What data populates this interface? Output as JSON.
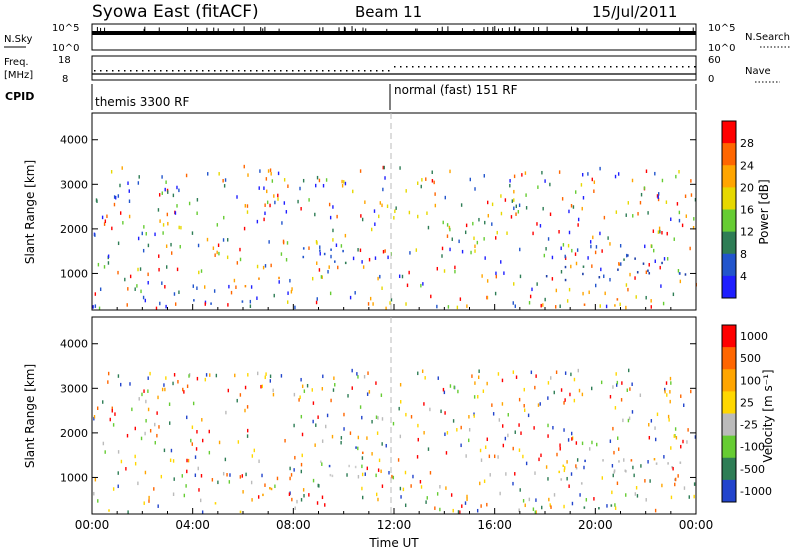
{
  "header": {
    "station": "Syowa East (fitACF)",
    "beam": "Beam 11",
    "date": "15/Jul/2011"
  },
  "top_panels": {
    "nsky_label": "N.Sky",
    "nsearch_label": "N.Search",
    "nsky_ticks": [
      "10^5",
      "10^0"
    ],
    "nsearch_ticks": [
      "10^5",
      "10^0"
    ],
    "freq_label": "Freq.",
    "freq_unit": "[MHz]",
    "freq_ticks": [
      "18",
      "8"
    ],
    "nave_label": "Nave",
    "nave_ticks": [
      "60",
      "0"
    ],
    "cpid_label": "CPID",
    "cpid_segments": [
      "themis 3300 RF",
      "normal (fast) 151 RF"
    ]
  },
  "chart_data": [
    {
      "type": "heatmap",
      "title": "",
      "xlabel": "Time UT",
      "ylabel": "Slant Range [km]",
      "x_ticks": [
        "00:00",
        "04:00",
        "08:00",
        "12:00",
        "16:00",
        "20:00",
        "00:00"
      ],
      "y_ticks": [
        "1000",
        "2000",
        "3000",
        "4000"
      ],
      "ylim": [
        180,
        4600
      ],
      "colorbar_label": "Power [dB]",
      "colorbar_ticks": [
        "4",
        "8",
        "12",
        "16",
        "20",
        "24",
        "28"
      ],
      "colorbar_colors": [
        "#1f1fff",
        "#2255cc",
        "#2e7d55",
        "#66cc33",
        "#e6d800",
        "#ffa500",
        "#ff6600",
        "#ff0000"
      ],
      "clusters": [
        {
          "t": [
            18.0,
            24.0
          ],
          "r": [
            800,
            1450
          ],
          "color": "#1e3fa8",
          "density": 0.55
        },
        {
          "t": [
            8.0,
            10.8
          ],
          "r": [
            1050,
            1750
          ],
          "color": "#2255cc",
          "density": 0.45
        },
        {
          "t": [
            6.0,
            7.5
          ],
          "r": [
            600,
            950
          ],
          "color": "#ff8c00",
          "density": 0.6
        },
        {
          "t": [
            18.5,
            21.0
          ],
          "r": [
            250,
            450
          ],
          "color": "#ff6600",
          "density": 0.6
        },
        {
          "t": [
            0.0,
            6.0
          ],
          "r": [
            200,
            450
          ],
          "color": "#2255cc",
          "density": 0.25
        }
      ]
    },
    {
      "type": "heatmap",
      "title": "",
      "xlabel": "Time UT",
      "ylabel": "Slant Range [km]",
      "x_ticks": [
        "00:00",
        "04:00",
        "08:00",
        "12:00",
        "16:00",
        "20:00",
        "00:00"
      ],
      "y_ticks": [
        "1000",
        "2000",
        "3000",
        "4000"
      ],
      "ylim": [
        180,
        4600
      ],
      "colorbar_label": "Velocity [m s⁻¹]",
      "colorbar_ticks": [
        "1000",
        "500",
        "100",
        "25",
        "-25",
        "-100",
        "-500",
        "-1000"
      ],
      "colorbar_colors": [
        "#2244cc",
        "#2e7d55",
        "#66cc33",
        "#bbbbbb",
        "#ffd700",
        "#ffa500",
        "#ff6600",
        "#ff0000"
      ],
      "clusters": [
        {
          "t": [
            18.0,
            24.0
          ],
          "r": [
            800,
            1450
          ],
          "color": "#bbbbbb",
          "density": 0.55
        },
        {
          "t": [
            8.0,
            10.8
          ],
          "r": [
            1050,
            1750
          ],
          "color": "#cccccc",
          "density": 0.45
        },
        {
          "t": [
            6.0,
            7.5
          ],
          "r": [
            600,
            950
          ],
          "color": "#ffa500",
          "density": 0.6
        },
        {
          "t": [
            18.5,
            21.0
          ],
          "r": [
            250,
            450
          ],
          "color": "#2e7d55",
          "density": 0.6
        },
        {
          "t": [
            0.0,
            6.0
          ],
          "r": [
            200,
            450
          ],
          "color": "#ffd700",
          "density": 0.25
        }
      ]
    }
  ]
}
